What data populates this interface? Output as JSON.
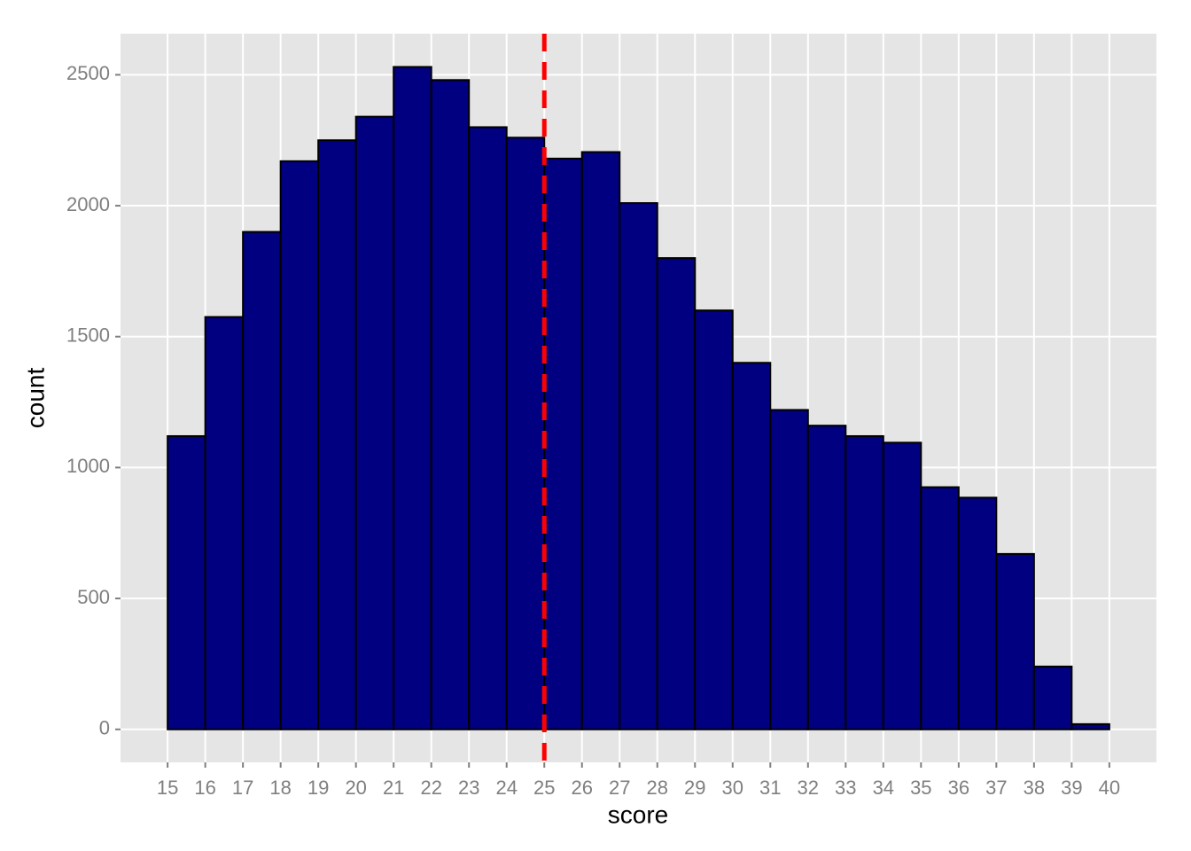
{
  "chart_data": {
    "type": "histogram",
    "x_label": "score",
    "y_label": "count",
    "bins": [
      15,
      16,
      17,
      18,
      19,
      20,
      21,
      22,
      23,
      24,
      25,
      26,
      27,
      28,
      29,
      30,
      31,
      32,
      33,
      34,
      35,
      36,
      37,
      38,
      39,
      40
    ],
    "values": [
      1120,
      1575,
      1900,
      2170,
      2250,
      2340,
      2530,
      2480,
      2300,
      2260,
      2180,
      2205,
      2010,
      1800,
      1600,
      1400,
      1220,
      1160,
      1120,
      1095,
      925,
      885,
      670,
      240,
      20
    ],
    "color": "#000080",
    "edge_color": "#000000",
    "vline": 25,
    "vline_color": "#ff0000",
    "xlim": [
      13.75,
      41.25
    ],
    "xticks": [
      15,
      16,
      17,
      18,
      19,
      20,
      21,
      22,
      23,
      24,
      25,
      26,
      27,
      28,
      29,
      30,
      31,
      32,
      33,
      34,
      35,
      36,
      37,
      38,
      39,
      40
    ],
    "ylim": [
      -126,
      2657
    ],
    "yticks": [
      0,
      500,
      1000,
      1500,
      2000,
      2500
    ],
    "grid": true
  }
}
